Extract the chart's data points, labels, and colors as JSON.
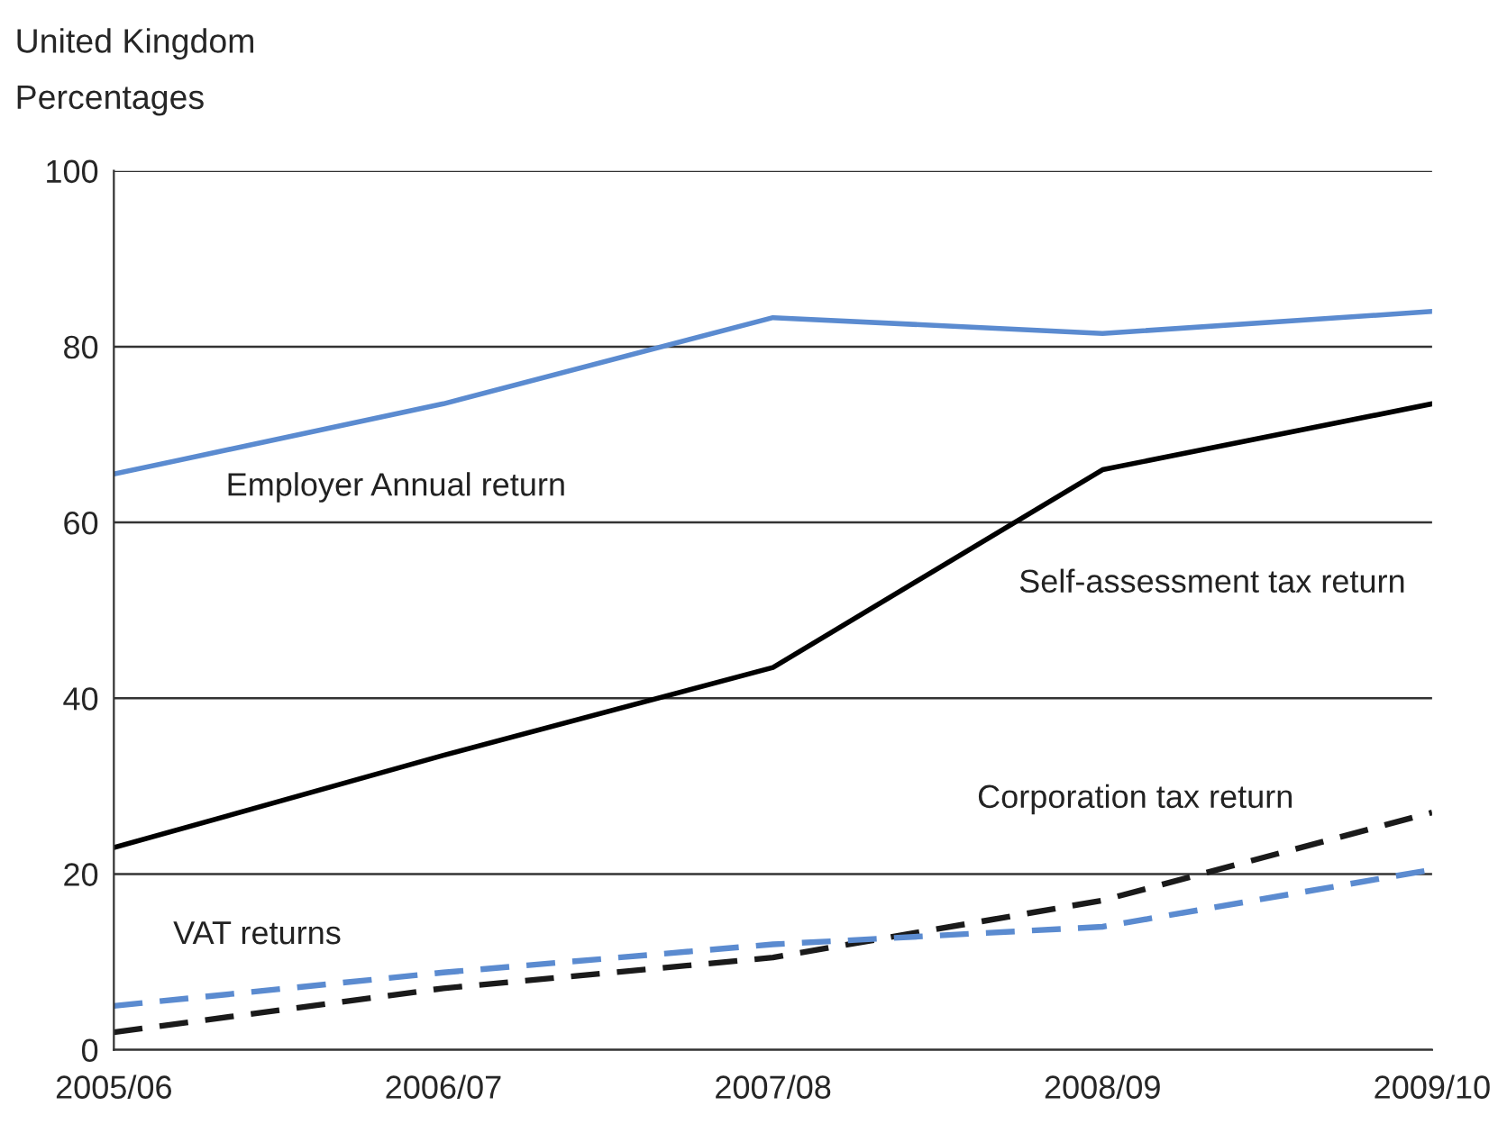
{
  "chart_data": {
    "type": "line",
    "title": "United Kingdom",
    "ylabel": "Percentages",
    "categories": [
      "2005/06",
      "2006/07",
      "2007/08",
      "2008/09",
      "2009/10"
    ],
    "series": [
      {
        "name": "Employer Annual return",
        "color": "#5b8bd0",
        "line_style": "solid",
        "values": [
          65.5,
          73.5,
          83.3,
          81.5,
          84
        ]
      },
      {
        "name": "Self-assessment tax return",
        "color": "#000000",
        "line_style": "solid",
        "values": [
          23,
          33.5,
          43.5,
          66,
          73.5
        ]
      },
      {
        "name": "Corporation tax return",
        "color": "#1a1a1a",
        "line_style": "dashed",
        "values": [
          2,
          7,
          10.5,
          17,
          27
        ]
      },
      {
        "name": "VAT returns",
        "color": "#5b8bd0",
        "line_style": "dashed",
        "values": [
          5,
          8.8,
          12,
          14,
          20.5
        ]
      }
    ],
    "ylim": [
      0,
      100
    ],
    "yticks": [
      0,
      20,
      40,
      60,
      80,
      100
    ],
    "grid": "y",
    "legend": false,
    "marker": "none"
  }
}
